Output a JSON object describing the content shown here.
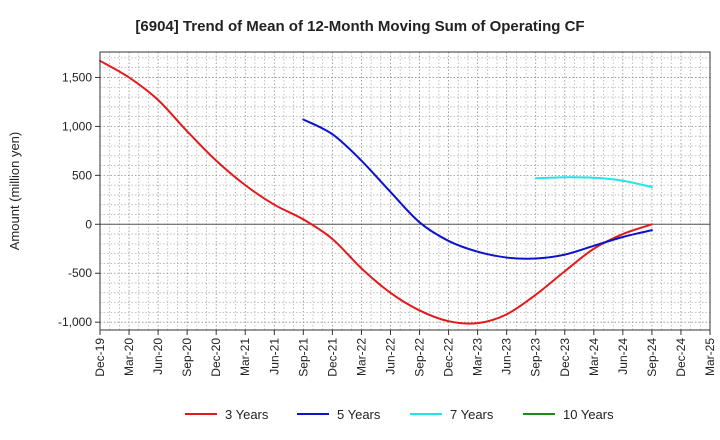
{
  "chart_data": {
    "type": "line",
    "title": "[6904]  Trend of Mean of 12-Month Moving Sum of Operating CF",
    "xlabel": "",
    "ylabel": "Amount (million yen)",
    "ylim": [
      -1080,
      1760
    ],
    "yticks": [
      -1000,
      -500,
      0,
      500,
      1000,
      1500
    ],
    "ytick_labels": [
      "-1,000",
      "-500",
      "0",
      "500",
      "1,000",
      "1,500"
    ],
    "categories": [
      "Dec-19",
      "Mar-20",
      "Jun-20",
      "Sep-20",
      "Dec-20",
      "Mar-21",
      "Jun-21",
      "Sep-21",
      "Dec-21",
      "Mar-22",
      "Jun-22",
      "Sep-22",
      "Dec-22",
      "Mar-23",
      "Jun-23",
      "Sep-23",
      "Dec-23",
      "Mar-24",
      "Jun-24",
      "Sep-24",
      "Dec-24",
      "Mar-25"
    ],
    "grid": true,
    "legend_position": "bottom",
    "series": [
      {
        "name": "3 Years",
        "color": "#e31a1c",
        "values": [
          1670,
          1500,
          1270,
          950,
          650,
          400,
          200,
          50,
          -150,
          -450,
          -700,
          -880,
          -990,
          -1010,
          -920,
          -720,
          -480,
          -250,
          -100,
          0,
          null,
          null
        ]
      },
      {
        "name": "5 Years",
        "color": "#0a14c8",
        "values": [
          null,
          null,
          null,
          null,
          null,
          null,
          null,
          1070,
          920,
          650,
          330,
          20,
          -170,
          -280,
          -340,
          -350,
          -310,
          -220,
          -130,
          -60,
          null,
          null
        ]
      },
      {
        "name": "7 Years",
        "color": "#22e6e6",
        "values": [
          null,
          null,
          null,
          null,
          null,
          null,
          null,
          null,
          null,
          null,
          null,
          null,
          null,
          null,
          null,
          470,
          480,
          475,
          445,
          380,
          null,
          null
        ]
      },
      {
        "name": "10 Years",
        "color": "#1a8a1a",
        "values": [
          null,
          null,
          null,
          null,
          null,
          null,
          null,
          null,
          null,
          null,
          null,
          null,
          null,
          null,
          null,
          null,
          null,
          null,
          null,
          null,
          null,
          null
        ]
      }
    ]
  }
}
